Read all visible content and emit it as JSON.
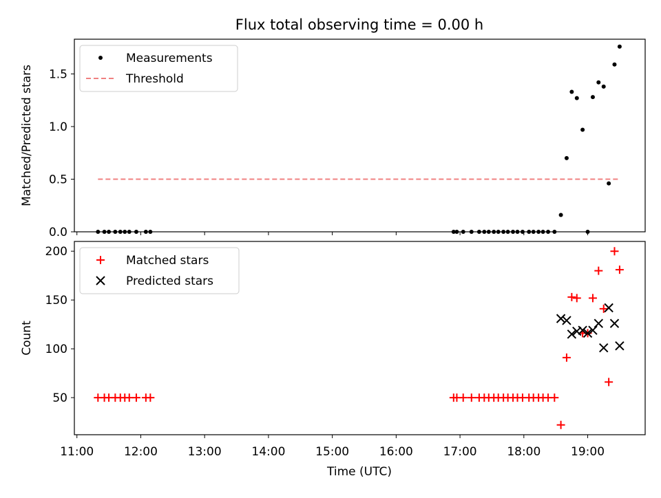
{
  "chart_data": {
    "title": "Flux total observing time = 0.00 h",
    "xlabel": "Time (UTC)",
    "x_unit": "hours UTC",
    "x_ticks": [
      {
        "value": 11,
        "label": "11:00"
      },
      {
        "value": 12,
        "label": "12:00"
      },
      {
        "value": 13,
        "label": "13:00"
      },
      {
        "value": 14,
        "label": "14:00"
      },
      {
        "value": 15,
        "label": "15:00"
      },
      {
        "value": 16,
        "label": "16:00"
      },
      {
        "value": 17,
        "label": "17:00"
      },
      {
        "value": 18,
        "label": "18:00"
      },
      {
        "value": 19,
        "label": "19:00"
      }
    ],
    "xlim": [
      10.96,
      19.9
    ],
    "panels": [
      {
        "type": "scatter",
        "ylabel": "Matched/Predicted stars",
        "ylim": [
          0,
          1.83
        ],
        "y_ticks": [
          {
            "value": 0,
            "label": "0.0"
          },
          {
            "value": 0.5,
            "label": "0.5"
          },
          {
            "value": 1.0,
            "label": "1.0"
          },
          {
            "value": 1.5,
            "label": "1.5"
          }
        ],
        "show_x_tick_labels": false,
        "legend_position": "upper-left",
        "series": [
          {
            "name": "Measurements",
            "kind": "dot",
            "color": "#000000",
            "points": [
              [
                11.33,
                0
              ],
              [
                11.43,
                0
              ],
              [
                11.5,
                0
              ],
              [
                11.6,
                0
              ],
              [
                11.68,
                0
              ],
              [
                11.75,
                0
              ],
              [
                11.82,
                0
              ],
              [
                11.93,
                0
              ],
              [
                12.08,
                0
              ],
              [
                12.15,
                0
              ],
              [
                16.9,
                0
              ],
              [
                16.95,
                0
              ],
              [
                17.05,
                0
              ],
              [
                17.18,
                0
              ],
              [
                17.3,
                0
              ],
              [
                17.38,
                0
              ],
              [
                17.45,
                0
              ],
              [
                17.53,
                0
              ],
              [
                17.6,
                0
              ],
              [
                17.68,
                0
              ],
              [
                17.75,
                0
              ],
              [
                17.83,
                0
              ],
              [
                17.9,
                0
              ],
              [
                17.98,
                0
              ],
              [
                18.08,
                0
              ],
              [
                18.15,
                0
              ],
              [
                18.23,
                0
              ],
              [
                18.3,
                0
              ],
              [
                18.38,
                0
              ],
              [
                18.48,
                0
              ],
              [
                18.58,
                0.16
              ],
              [
                18.67,
                0.7
              ],
              [
                18.75,
                1.33
              ],
              [
                18.83,
                1.27
              ],
              [
                18.92,
                0.97
              ],
              [
                19.0,
                0
              ],
              [
                19.08,
                1.28
              ],
              [
                19.17,
                1.42
              ],
              [
                19.25,
                1.38
              ],
              [
                19.33,
                0.46
              ],
              [
                19.42,
                1.59
              ],
              [
                19.5,
                1.76
              ]
            ]
          },
          {
            "name": "Threshold",
            "kind": "dashed-line",
            "color": "#f08080",
            "points": [
              [
                11.33,
                0.5
              ],
              [
                19.5,
                0.5
              ]
            ]
          }
        ]
      },
      {
        "type": "scatter",
        "ylabel": "Count",
        "ylim": [
          12,
          210
        ],
        "y_ticks": [
          {
            "value": 50,
            "label": "50"
          },
          {
            "value": 100,
            "label": "100"
          },
          {
            "value": 150,
            "label": "150"
          },
          {
            "value": 200,
            "label": "200"
          }
        ],
        "show_x_tick_labels": true,
        "legend_position": "upper-left",
        "series": [
          {
            "name": "Matched stars",
            "kind": "plus",
            "color": "#ff0000",
            "points": [
              [
                11.33,
                50
              ],
              [
                11.43,
                50
              ],
              [
                11.5,
                50
              ],
              [
                11.6,
                50
              ],
              [
                11.68,
                50
              ],
              [
                11.75,
                50
              ],
              [
                11.82,
                50
              ],
              [
                11.93,
                50
              ],
              [
                12.08,
                50
              ],
              [
                12.15,
                50
              ],
              [
                16.9,
                50
              ],
              [
                16.95,
                50
              ],
              [
                17.05,
                50
              ],
              [
                17.18,
                50
              ],
              [
                17.3,
                50
              ],
              [
                17.38,
                50
              ],
              [
                17.45,
                50
              ],
              [
                17.53,
                50
              ],
              [
                17.6,
                50
              ],
              [
                17.68,
                50
              ],
              [
                17.75,
                50
              ],
              [
                17.83,
                50
              ],
              [
                17.9,
                50
              ],
              [
                17.98,
                50
              ],
              [
                18.08,
                50
              ],
              [
                18.15,
                50
              ],
              [
                18.23,
                50
              ],
              [
                18.3,
                50
              ],
              [
                18.38,
                50
              ],
              [
                18.48,
                50
              ],
              [
                18.58,
                22
              ],
              [
                18.67,
                91
              ],
              [
                18.75,
                153
              ],
              [
                18.83,
                152
              ],
              [
                18.92,
                116
              ],
              [
                19.0,
                116
              ],
              [
                19.08,
                152
              ],
              [
                19.17,
                180
              ],
              [
                19.25,
                141
              ],
              [
                19.33,
                66
              ],
              [
                19.42,
                200
              ],
              [
                19.5,
                181
              ]
            ]
          },
          {
            "name": "Predicted stars",
            "kind": "cross",
            "color": "#000000",
            "points": [
              [
                18.58,
                131
              ],
              [
                18.67,
                129
              ],
              [
                18.75,
                115
              ],
              [
                18.83,
                118
              ],
              [
                18.92,
                119
              ],
              [
                19.0,
                116
              ],
              [
                19.08,
                119
              ],
              [
                19.17,
                126
              ],
              [
                19.25,
                101
              ],
              [
                19.33,
                142
              ],
              [
                19.42,
                126
              ],
              [
                19.5,
                103
              ]
            ]
          }
        ]
      }
    ]
  }
}
